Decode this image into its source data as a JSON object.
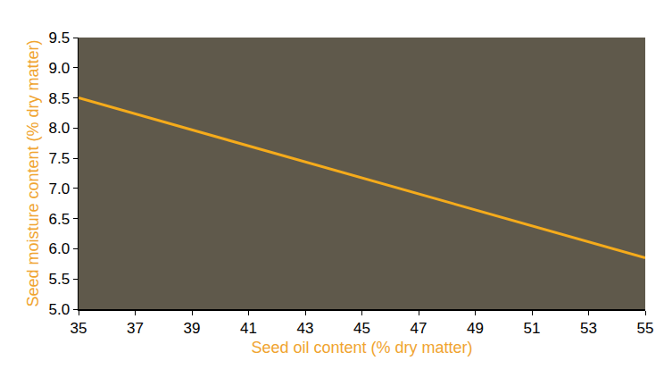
{
  "chart_data": {
    "type": "line",
    "x_label": "Seed oil content (% dry matter)",
    "y_label": "Seed moisture content (% dry matter)",
    "x": [
      35,
      55
    ],
    "values": [
      8.5,
      5.85
    ],
    "color": "#f5ab1b",
    "xlim": [
      35,
      55
    ],
    "ylim": [
      5,
      9.5
    ],
    "xticks": [
      35,
      37,
      39,
      41,
      43,
      45,
      47,
      49,
      51,
      53,
      55
    ],
    "yticks": [
      {
        "value": 5,
        "label": "5.0"
      },
      5.5,
      {
        "value": 6,
        "label": "6.0"
      },
      6.5,
      {
        "value": 7,
        "label": "7.0"
      },
      7.5,
      {
        "value": 8,
        "label": "8.0"
      },
      8.5,
      {
        "value": 9,
        "label": "9.0"
      },
      9.5
    ],
    "grid": false
  }
}
